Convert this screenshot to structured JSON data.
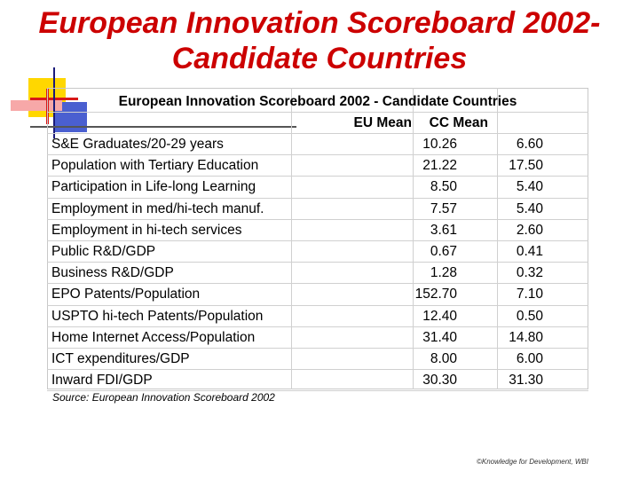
{
  "slide": {
    "title_line1": "European Innovation Scoreboard 2002-",
    "title_line2": "Candidate Countries"
  },
  "table": {
    "heading": "European Innovation Scoreboard 2002 - Candidate Countries",
    "columns": [
      "EU Mean",
      "CC Mean"
    ],
    "rows": [
      {
        "label": "S&E Graduates/20-29 years",
        "eu_mean": "10.26",
        "cc_mean": "6.60"
      },
      {
        "label": "Population with Tertiary Education",
        "eu_mean": "21.22",
        "cc_mean": "17.50"
      },
      {
        "label": "Participation in Life-long Learning",
        "eu_mean": "8.50",
        "cc_mean": "5.40"
      },
      {
        "label": "Employment in med/hi-tech manuf.",
        "eu_mean": "7.57",
        "cc_mean": "5.40"
      },
      {
        "label": "Employment in hi-tech services",
        "eu_mean": "3.61",
        "cc_mean": "2.60"
      },
      {
        "label": "Public R&D/GDP",
        "eu_mean": "0.67",
        "cc_mean": "0.41"
      },
      {
        "label": "Business R&D/GDP",
        "eu_mean": "1.28",
        "cc_mean": "0.32"
      },
      {
        "label": "EPO Patents/Population",
        "eu_mean": "152.70",
        "cc_mean": "7.10"
      },
      {
        "label": "USPTO hi-tech Patents/Population",
        "eu_mean": "12.40",
        "cc_mean": "0.50"
      },
      {
        "label": "Home Internet Access/Population",
        "eu_mean": "31.40",
        "cc_mean": "14.80"
      },
      {
        "label": "ICT expenditures/GDP",
        "eu_mean": "8.00",
        "cc_mean": "6.00"
      },
      {
        "label": "Inward FDI/GDP",
        "eu_mean": "30.30",
        "cc_mean": "31.30"
      }
    ],
    "source": "Source: European Innovation Scoreboard 2002"
  },
  "footer": {
    "copyright": "©Knowledge for Development, WBI"
  }
}
